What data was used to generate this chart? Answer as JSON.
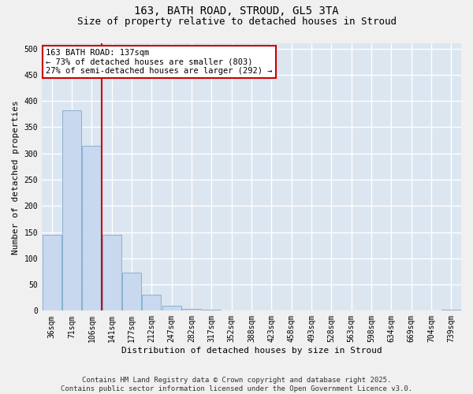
{
  "title1": "163, BATH ROAD, STROUD, GL5 3TA",
  "title2": "Size of property relative to detached houses in Stroud",
  "xlabel": "Distribution of detached houses by size in Stroud",
  "ylabel": "Number of detached properties",
  "categories": [
    "36sqm",
    "71sqm",
    "106sqm",
    "141sqm",
    "177sqm",
    "212sqm",
    "247sqm",
    "282sqm",
    "317sqm",
    "352sqm",
    "388sqm",
    "423sqm",
    "458sqm",
    "493sqm",
    "528sqm",
    "563sqm",
    "598sqm",
    "634sqm",
    "669sqm",
    "704sqm",
    "739sqm"
  ],
  "values": [
    145,
    383,
    315,
    145,
    72,
    30,
    10,
    4,
    2,
    0,
    0,
    0,
    0,
    0,
    0,
    0,
    0,
    0,
    0,
    0,
    2
  ],
  "bar_color": "#c8d8ee",
  "bar_edge_color": "#7aaad0",
  "vline_index": 2.5,
  "vline_color": "#cc0000",
  "annotation_text": "163 BATH ROAD: 137sqm\n← 73% of detached houses are smaller (803)\n27% of semi-detached houses are larger (292) →",
  "annotation_box_facecolor": "#ffffff",
  "annotation_box_edgecolor": "#cc0000",
  "ylim": [
    0,
    510
  ],
  "yticks": [
    0,
    50,
    100,
    150,
    200,
    250,
    300,
    350,
    400,
    450,
    500
  ],
  "plot_bg_color": "#dce6f0",
  "fig_bg_color": "#f0f0f0",
  "grid_color": "#ffffff",
  "footer": "Contains HM Land Registry data © Crown copyright and database right 2025.\nContains public sector information licensed under the Open Government Licence v3.0.",
  "title1_fontsize": 10,
  "title2_fontsize": 9,
  "xlabel_fontsize": 8,
  "ylabel_fontsize": 8,
  "tick_fontsize": 7,
  "annot_fontsize": 7.5,
  "footer_fontsize": 6.5
}
